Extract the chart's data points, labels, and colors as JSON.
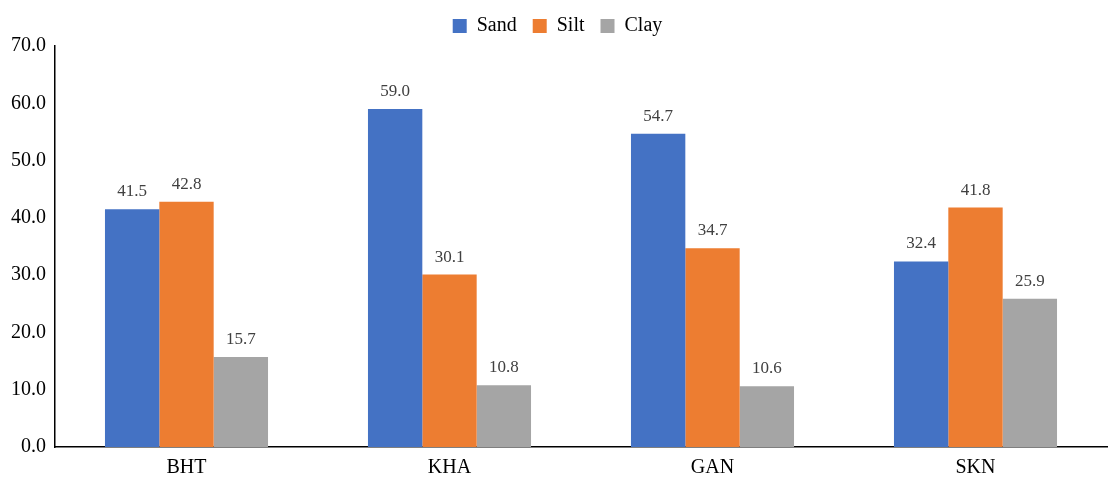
{
  "chart_data": {
    "type": "bar",
    "categories": [
      "BHT",
      "KHA",
      "GAN",
      "SKN"
    ],
    "series": [
      {
        "name": "Sand",
        "color": "#4472c4",
        "values": [
          41.5,
          59.0,
          54.7,
          32.4
        ],
        "value_labels": [
          "41.5",
          "59.0",
          "54.7",
          "32.4"
        ]
      },
      {
        "name": "Silt",
        "color": "#ed7d31",
        "values": [
          42.8,
          30.1,
          34.7,
          41.8
        ],
        "value_labels": [
          "42.8",
          "30.1",
          "34.7",
          "41.8"
        ]
      },
      {
        "name": "Clay",
        "color": "#a5a5a5",
        "values": [
          15.7,
          10.8,
          10.6,
          25.9
        ],
        "value_labels": [
          "15.7",
          "10.8",
          "10.6",
          "25.9"
        ]
      }
    ],
    "ylim": [
      0,
      70
    ],
    "yticks": [
      {
        "value": 0,
        "label": "0.0"
      },
      {
        "value": 10,
        "label": "10.0"
      },
      {
        "value": 20,
        "label": "20.0"
      },
      {
        "value": 30,
        "label": "30.0"
      },
      {
        "value": 40,
        "label": "40.0"
      },
      {
        "value": 50,
        "label": "50.0"
      },
      {
        "value": 60,
        "label": "60.0"
      },
      {
        "value": 70,
        "label": "70.0"
      }
    ],
    "grid": false,
    "legend": "top"
  }
}
